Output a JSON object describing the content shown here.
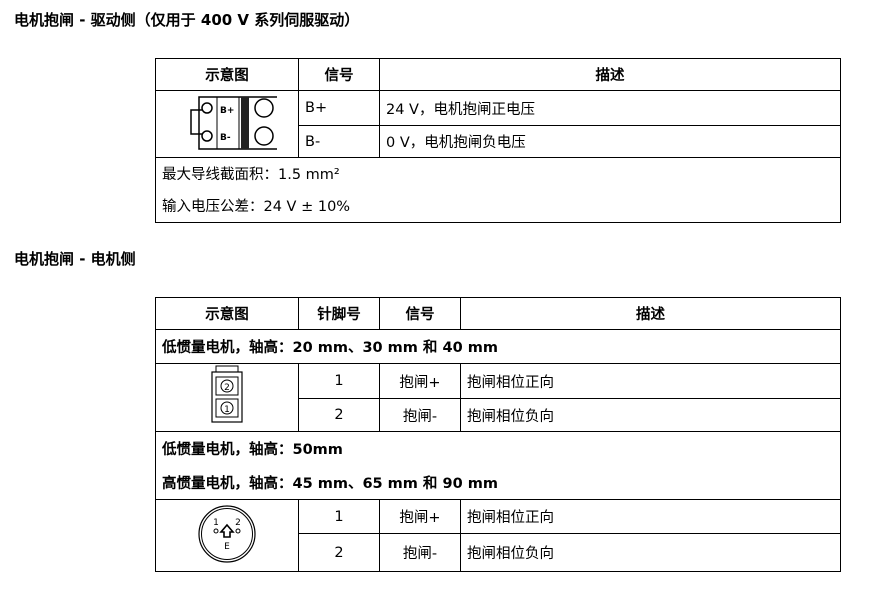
{
  "section1": {
    "title": "电机抱闸 - 驱动侧（仅用于 400 V 系列伺服驱动）",
    "headers": [
      "示意图",
      "信号",
      "描述"
    ],
    "rows": [
      {
        "signal": "B+",
        "desc": "24 V，电机抱闸正电压"
      },
      {
        "signal": "B-",
        "desc": "0 V，电机抱闸负电压"
      }
    ],
    "notes": [
      "最大导线截面积：1.5 mm²",
      "输入电压公差：24 V ± 10%"
    ],
    "diagram_labels": [
      "B+",
      "B-"
    ]
  },
  "section2": {
    "title": "电机抱闸 - 电机侧",
    "headers": [
      "示意图",
      "针脚号",
      "信号",
      "描述"
    ],
    "group1": "低惯量电机，轴高：20 mm、30 mm 和 40 mm",
    "rows1": [
      {
        "pin": "1",
        "signal": "抱闸+",
        "desc": "抱闸相位正向"
      },
      {
        "pin": "2",
        "signal": "抱闸-",
        "desc": "抱闸相位负向"
      }
    ],
    "group2a": "低惯量电机，轴高：50mm",
    "group2b": "高惯量电机，轴高：45 mm、65 mm 和 90 mm",
    "rows2": [
      {
        "pin": "1",
        "signal": "抱闸+",
        "desc": "抱闸相位正向"
      },
      {
        "pin": "2",
        "signal": "抱闸-",
        "desc": "抱闸相位负向"
      }
    ],
    "connector1_labels": [
      "2",
      "1"
    ],
    "connector2_labels": [
      "1",
      "2",
      "E"
    ]
  }
}
